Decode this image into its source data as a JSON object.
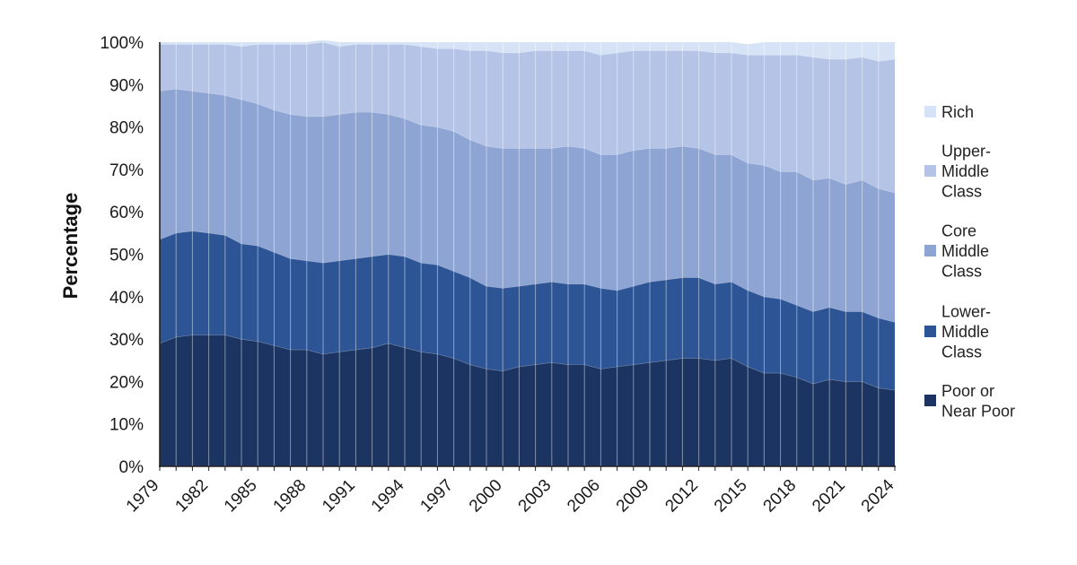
{
  "chart_data": {
    "type": "area",
    "stacked": true,
    "title": "",
    "xlabel": "",
    "ylabel": "Percentage",
    "ylim": [
      0,
      100
    ],
    "x": [
      1979,
      1980,
      1981,
      1982,
      1983,
      1984,
      1985,
      1986,
      1987,
      1988,
      1989,
      1990,
      1991,
      1992,
      1993,
      1994,
      1995,
      1996,
      1997,
      1998,
      1999,
      2000,
      2001,
      2002,
      2003,
      2004,
      2005,
      2006,
      2007,
      2008,
      2009,
      2010,
      2011,
      2012,
      2013,
      2014,
      2015,
      2016,
      2017,
      2018,
      2019,
      2020,
      2021,
      2022,
      2023,
      2024
    ],
    "x_ticks": [
      1979,
      1982,
      1985,
      1988,
      1991,
      1994,
      1997,
      2000,
      2003,
      2006,
      2009,
      2012,
      2015,
      2018,
      2021,
      2024
    ],
    "y_ticks": [
      "0%",
      "10%",
      "20%",
      "30%",
      "40%",
      "50%",
      "60%",
      "70%",
      "80%",
      "90%",
      "100%"
    ],
    "series": [
      {
        "name": "Poor or Near Poor",
        "color": "#1c3461",
        "values": [
          29,
          30.5,
          31,
          31,
          31,
          30,
          29.5,
          28.5,
          27.5,
          27.5,
          26.5,
          27,
          27.5,
          28,
          29,
          28,
          27,
          26.5,
          25.5,
          24,
          23,
          22.5,
          23.5,
          24,
          24.5,
          24,
          24,
          23,
          23.5,
          24,
          24.5,
          25,
          25.5,
          25.5,
          25,
          25.5,
          23.5,
          22,
          22,
          21,
          19.5,
          20.5,
          20,
          20,
          18.5,
          18
        ]
      },
      {
        "name": "Lower-Middle Class",
        "color": "#2d5596",
        "values": [
          24.5,
          24.5,
          24.5,
          24,
          23.5,
          22.5,
          22.5,
          22,
          21.5,
          21,
          21.5,
          21.5,
          21.5,
          21.5,
          21,
          21.5,
          21,
          21,
          20.5,
          20.5,
          19.5,
          19.5,
          19,
          19,
          19,
          19,
          19,
          19,
          18,
          18.5,
          19,
          19,
          19,
          19,
          18,
          18,
          18,
          18,
          17.5,
          17,
          17,
          17,
          16.5,
          16.5,
          16.5,
          16
        ]
      },
      {
        "name": "Core Middle Class",
        "color": "#8ea5d4",
        "values": [
          35,
          34,
          33,
          33,
          33,
          34,
          33.5,
          33.5,
          34,
          34,
          34.5,
          34.5,
          34.5,
          34,
          33,
          32.5,
          32.5,
          32.5,
          33,
          32.5,
          33,
          33,
          32.5,
          32,
          31.5,
          32.5,
          32,
          31.5,
          32,
          32,
          31.5,
          31,
          31,
          30.5,
          30.5,
          30,
          30,
          31,
          30,
          31.5,
          31,
          30.5,
          30,
          31,
          30.5,
          30.5
        ]
      },
      {
        "name": "Upper-Middle Class",
        "color": "#b5c4e6",
        "values": [
          11,
          10.5,
          11,
          11.5,
          12,
          12.5,
          14,
          15.5,
          16.5,
          17,
          17.5,
          16,
          16,
          16,
          16.5,
          17.5,
          18.5,
          18.5,
          19.5,
          21,
          22.5,
          22.5,
          22.5,
          23,
          23,
          22.5,
          23,
          23.5,
          24,
          23.5,
          23,
          23,
          22.5,
          23,
          24,
          24,
          25.5,
          26,
          27.5,
          27.5,
          29,
          28,
          29.5,
          29,
          30,
          31.5
        ]
      },
      {
        "name": "Rich",
        "color": "#d6e2f5",
        "values": [
          0.5,
          0.5,
          0.5,
          0.5,
          0.5,
          1,
          0.5,
          0.5,
          0.5,
          0.5,
          0.5,
          1,
          0.5,
          0.5,
          0.5,
          0.5,
          1,
          1.5,
          1.5,
          2,
          2,
          2.5,
          2.5,
          2,
          2,
          2,
          2,
          3,
          2.5,
          2,
          2,
          2,
          2,
          2,
          2.5,
          2.5,
          2.5,
          3,
          3,
          3,
          3.5,
          4,
          4,
          3.5,
          4.5,
          4
        ]
      }
    ],
    "legend_position": "right",
    "legend_labels": [
      {
        "lines": [
          "Rich"
        ]
      },
      {
        "lines": [
          "Upper-",
          "Middle",
          "Class"
        ]
      },
      {
        "lines": [
          "Core",
          "Middle",
          "Class"
        ]
      },
      {
        "lines": [
          "Lower-",
          "Middle",
          "Class"
        ]
      },
      {
        "lines": [
          "Poor or",
          "Near Poor"
        ]
      }
    ],
    "grid": false
  }
}
